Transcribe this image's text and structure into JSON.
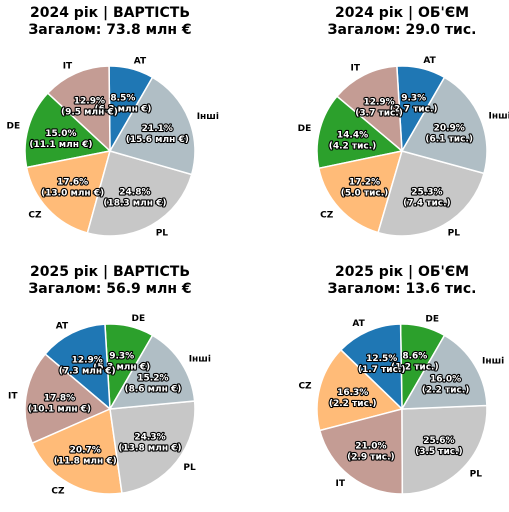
{
  "colors": {
    "AT": "#1f77b4",
    "IT": "#c49c94",
    "DE": "#2ca02c",
    "CZ": "#ffbb78",
    "PL": "#c7c7c7",
    "Інші": "#b0bec5"
  },
  "chart_data": [
    {
      "type": "pie",
      "title": "2024 рік | ВАРТІСТЬ",
      "subtitle": "Загалом: 73.8 млн €",
      "slices": [
        {
          "category": "AT",
          "label": "AT",
          "percent": 8.5,
          "value_label": "(6.3 млн €)"
        },
        {
          "category": "IT",
          "label": "IT",
          "percent": 12.9,
          "value_label": "(9.5 млн €)"
        },
        {
          "category": "DE",
          "label": "DE",
          "percent": 15.0,
          "value_label": "(11.1 млн €)"
        },
        {
          "category": "CZ",
          "label": "CZ",
          "percent": 17.6,
          "value_label": "(13.0 млн €)"
        },
        {
          "category": "PL",
          "label": "PL",
          "percent": 24.8,
          "value_label": "(18.3 млн €)"
        },
        {
          "category": "Інші",
          "label": "Інші",
          "percent": 21.1,
          "value_label": "(15.6 млн €)"
        }
      ]
    },
    {
      "type": "pie",
      "title": "2024 рік | ОБ'ЄМ",
      "subtitle": "Загалом: 29.0 тис.",
      "slices": [
        {
          "category": "AT",
          "label": "AT",
          "percent": 9.3,
          "value_label": "(2.7 тис.)"
        },
        {
          "category": "IT",
          "label": "IT",
          "percent": 12.9,
          "value_label": "(3.7 тис.)"
        },
        {
          "category": "DE",
          "label": "DE",
          "percent": 14.4,
          "value_label": "(4.2 тис.)"
        },
        {
          "category": "CZ",
          "label": "CZ",
          "percent": 17.2,
          "value_label": "(5.0 тис.)"
        },
        {
          "category": "PL",
          "label": "PL",
          "percent": 25.3,
          "value_label": "(7.4 тис.)"
        },
        {
          "category": "Інші",
          "label": "Інші",
          "percent": 20.9,
          "value_label": "(6.1 тис.)"
        }
      ]
    },
    {
      "type": "pie",
      "title": "2025 рік | ВАРТІСТЬ",
      "subtitle": "Загалом: 56.9 млн €",
      "slices": [
        {
          "category": "DE",
          "label": "DE",
          "percent": 9.3,
          "value_label": "(5.3 млн €)"
        },
        {
          "category": "AT",
          "label": "AT",
          "percent": 12.9,
          "value_label": "(7.3 млн €)"
        },
        {
          "category": "IT",
          "label": "IT",
          "percent": 17.8,
          "value_label": "(10.1 млн €)"
        },
        {
          "category": "CZ",
          "label": "CZ",
          "percent": 20.7,
          "value_label": "(11.8 млн €)"
        },
        {
          "category": "PL",
          "label": "PL",
          "percent": 24.3,
          "value_label": "(13.8 млн €)"
        },
        {
          "category": "Інші",
          "label": "Інші",
          "percent": 15.2,
          "value_label": "(8.6 млн €)"
        }
      ]
    },
    {
      "type": "pie",
      "title": "2025 рік | ОБ'ЄМ",
      "subtitle": "Загалом: 13.6 тис.",
      "slices": [
        {
          "category": "DE",
          "label": "DE",
          "percent": 8.6,
          "value_label": "(1.2 тис.)"
        },
        {
          "category": "AT",
          "label": "AT",
          "percent": 12.5,
          "value_label": "(1.7 тис.)"
        },
        {
          "category": "CZ",
          "label": "CZ",
          "percent": 16.3,
          "value_label": "(2.2 тис.)"
        },
        {
          "category": "IT",
          "label": "IT",
          "percent": 21.0,
          "value_label": "(2.9 тис.)"
        },
        {
          "category": "PL",
          "label": "PL",
          "percent": 25.6,
          "value_label": "(3.5 тис.)"
        },
        {
          "category": "Інші",
          "label": "Інші",
          "percent": 16.0,
          "value_label": "(2.2 тис.)"
        }
      ]
    }
  ]
}
